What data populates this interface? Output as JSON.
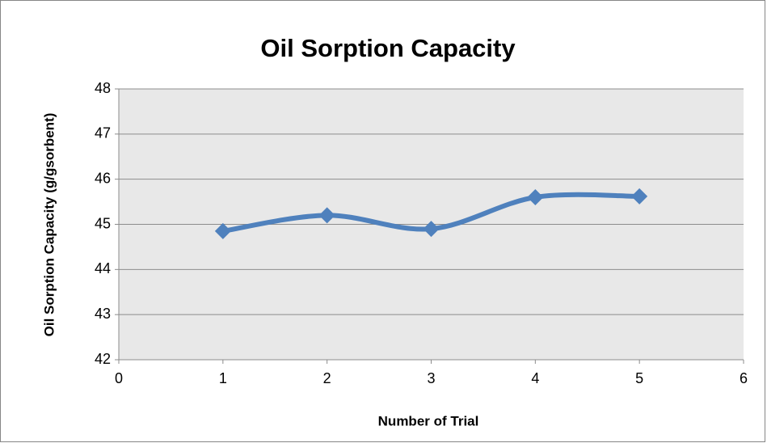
{
  "chart_data": {
    "type": "line",
    "smooth": true,
    "title": "Oil Sorption Capacity",
    "xlabel": "Number of Trial",
    "ylabel": "Oil Sorption Capacity (g/gsorbent)",
    "x": [
      1,
      2,
      3,
      4,
      5
    ],
    "series": [
      {
        "color": "#4f81bd",
        "values": [
          44.85,
          45.2,
          44.9,
          45.6,
          45.62
        ]
      }
    ],
    "xlim": [
      0,
      6
    ],
    "xticks": [
      0,
      1,
      2,
      3,
      4,
      5,
      6
    ],
    "ylim": [
      42,
      48
    ],
    "yticks": [
      42,
      43,
      44,
      45,
      46,
      47,
      48
    ],
    "grid": true
  }
}
